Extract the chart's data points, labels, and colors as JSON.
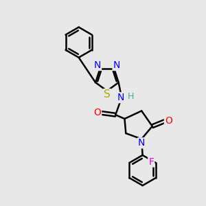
{
  "bg_color": "#e8e8e8",
  "bond_color": "#000000",
  "bond_width": 1.8,
  "atom_colors": {
    "N": "#0000ff",
    "O": "#ff0000",
    "S": "#aaaa00",
    "F": "#dd00dd",
    "C": "#000000",
    "H": "#44aaaa"
  },
  "font_size": 10,
  "figsize": [
    3.0,
    3.0
  ],
  "dpi": 100
}
